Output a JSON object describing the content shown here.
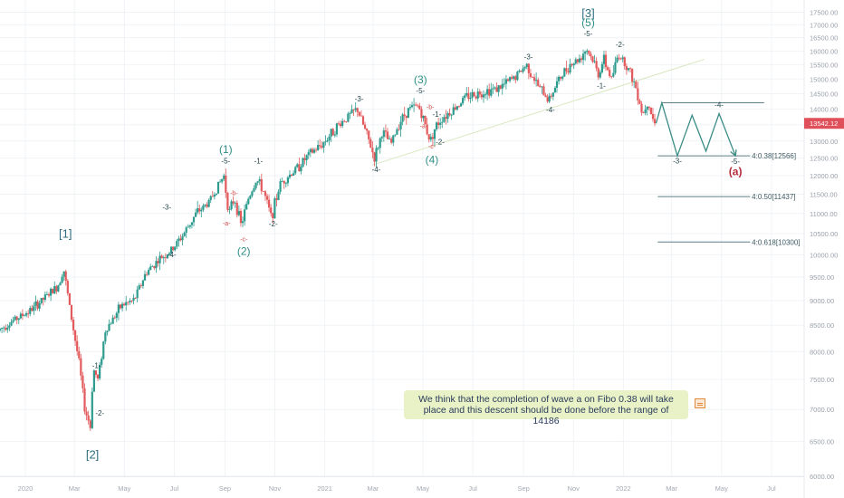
{
  "chart_data": {
    "type": "candlestick",
    "yscale": "log",
    "ylim": [
      6000,
      18000
    ],
    "y_ticks": [
      "6000.00",
      "6500.00",
      "7000.00",
      "7500.00",
      "8000.00",
      "8500.00",
      "9000.00",
      "9500.00",
      "10000.00",
      "10500.00",
      "11000.00",
      "11500.00",
      "12000.00",
      "12500.00",
      "13000.00",
      "13500.00",
      "14000.00",
      "14500.00",
      "15000.00",
      "15500.00",
      "16000.00",
      "16500.00",
      "17000.00",
      "17500.00"
    ],
    "x_ticks": [
      "2020",
      "Mar",
      "May",
      "Jul",
      "Sep",
      "Nov",
      "2021",
      "Mar",
      "May",
      "Jul",
      "Sep",
      "Nov",
      "2022",
      "Mar",
      "May",
      "Jul"
    ],
    "x_range": [
      "2019-12-01",
      "2022-08-10"
    ],
    "last_price": "13542.12",
    "price_path": [
      [
        "2019-12-01",
        8400
      ],
      [
        "2019-12-20",
        8600
      ],
      [
        "2020-01-10",
        8800
      ],
      [
        "2020-01-30",
        9100
      ],
      [
        "2020-02-12",
        9300
      ],
      [
        "2020-02-19",
        9700
      ],
      [
        "2020-02-28",
        8700
      ],
      [
        "2020-03-09",
        7800
      ],
      [
        "2020-03-16",
        7000
      ],
      [
        "2020-03-20",
        6850
      ],
      [
        "2020-03-23",
        6700
      ],
      [
        "2020-03-26",
        7700
      ],
      [
        "2020-04-01",
        7500
      ],
      [
        "2020-04-10",
        8400
      ],
      [
        "2020-04-30",
        8900
      ],
      [
        "2020-05-15",
        9000
      ],
      [
        "2020-05-30",
        9600
      ],
      [
        "2020-06-15",
        9900
      ],
      [
        "2020-06-30",
        10100
      ],
      [
        "2020-07-15",
        10500
      ],
      [
        "2020-07-30",
        11000
      ],
      [
        "2020-08-15",
        11300
      ],
      [
        "2020-08-25",
        11700
      ],
      [
        "2020-09-02",
        12000
      ],
      [
        "2020-09-08",
        11000
      ],
      [
        "2020-09-15",
        11400
      ],
      [
        "2020-09-23",
        10700
      ],
      [
        "2020-10-02",
        11400
      ],
      [
        "2020-10-12",
        11900
      ],
      [
        "2020-10-20",
        11600
      ],
      [
        "2020-10-30",
        10900
      ],
      [
        "2020-11-10",
        11800
      ],
      [
        "2020-11-30",
        12200
      ],
      [
        "2020-12-15",
        12600
      ],
      [
        "2020-12-31",
        12900
      ],
      [
        "2021-01-20",
        13500
      ],
      [
        "2021-02-12",
        14000
      ],
      [
        "2021-02-25",
        13100
      ],
      [
        "2021-03-05",
        12500
      ],
      [
        "2021-03-15",
        13300
      ],
      [
        "2021-03-25",
        12900
      ],
      [
        "2021-04-05",
        13600
      ],
      [
        "2021-04-16",
        14000
      ],
      [
        "2021-04-28",
        14100
      ],
      [
        "2021-05-06",
        13500
      ],
      [
        "2021-05-12",
        13000
      ],
      [
        "2021-05-18",
        13400
      ],
      [
        "2021-05-26",
        13700
      ],
      [
        "2021-06-10",
        14000
      ],
      [
        "2021-06-25",
        14400
      ],
      [
        "2021-07-08",
        14500
      ],
      [
        "2021-07-20",
        14600
      ],
      [
        "2021-08-05",
        14700
      ],
      [
        "2021-08-25",
        15100
      ],
      [
        "2021-09-07",
        15500
      ],
      [
        "2021-09-20",
        14800
      ],
      [
        "2021-10-04",
        14300
      ],
      [
        "2021-10-15",
        14900
      ],
      [
        "2021-10-29",
        15500
      ],
      [
        "2021-11-10",
        15700
      ],
      [
        "2021-11-19",
        16100
      ],
      [
        "2021-11-30",
        15500
      ],
      [
        "2021-12-03",
        15100
      ],
      [
        "2021-12-10",
        15700
      ],
      [
        "2021-12-20",
        15000
      ],
      [
        "2021-12-28",
        15900
      ],
      [
        "2022-01-05",
        15600
      ],
      [
        "2022-01-12",
        15200
      ],
      [
        "2022-01-20",
        14600
      ],
      [
        "2022-01-27",
        13800
      ],
      [
        "2022-02-02",
        14300
      ],
      [
        "2022-02-10",
        13542.12
      ]
    ],
    "projection": [
      [
        "2022-02-10",
        13542.12
      ],
      [
        "2022-02-17",
        14200
      ],
      [
        "2022-03-08",
        12566
      ],
      [
        "2022-03-26",
        13800
      ],
      [
        "2022-04-12",
        12700
      ],
      [
        "2022-04-28",
        13850
      ],
      [
        "2022-05-18",
        12566
      ]
    ],
    "trendline": [
      [
        "2021-02-28",
        12300
      ],
      [
        "2022-04-10",
        15700
      ]
    ],
    "resistance": {
      "price": 14200,
      "from": "2022-02-17",
      "to": "2022-06-22"
    },
    "fib_levels": [
      {
        "label": "4:0.38[12566]",
        "price": 12566
      },
      {
        "label": "4:0.50[11437]",
        "price": 11437
      },
      {
        "label": "4:0.618[10300]",
        "price": 10300
      }
    ],
    "wave_labels": [
      {
        "text": "[1]",
        "date": "2020-02-19",
        "price": 10400,
        "color": "#2f6d7e",
        "size": 13
      },
      {
        "text": "[2]",
        "date": "2020-03-23",
        "price": 6250,
        "color": "#2f6d7e",
        "size": 13
      },
      {
        "text": "-1-",
        "date": "2020-03-28",
        "price": 7700,
        "color": "#1c3f47",
        "size": 8
      },
      {
        "text": "-2-",
        "date": "2020-04-01",
        "price": 6900,
        "color": "#1c3f47",
        "size": 8
      },
      {
        "text": "-3-",
        "date": "2020-06-22",
        "price": 11100,
        "color": "#1c3f47",
        "size": 8
      },
      {
        "text": "-4-",
        "date": "2020-06-28",
        "price": 9950,
        "color": "#1c3f47",
        "size": 8
      },
      {
        "text": "(1)",
        "date": "2020-09-02",
        "price": 12650,
        "color": "#2f8f86",
        "size": 12
      },
      {
        "text": "-5-",
        "date": "2020-09-02",
        "price": 12350,
        "color": "#1c3f47",
        "size": 8
      },
      {
        "text": "-b-",
        "date": "2020-09-12",
        "price": 11480,
        "color": "#d24a4a",
        "size": 7
      },
      {
        "text": "-a-",
        "date": "2020-09-03",
        "price": 10700,
        "color": "#d24a4a",
        "size": 7
      },
      {
        "text": "-c-",
        "date": "2020-09-24",
        "price": 10320,
        "color": "#d24a4a",
        "size": 7
      },
      {
        "text": "(2)",
        "date": "2020-09-24",
        "price": 10000,
        "color": "#2f8f86",
        "size": 12
      },
      {
        "text": "-1-",
        "date": "2020-10-12",
        "price": 12350,
        "color": "#1c3f47",
        "size": 8
      },
      {
        "text": "-2-",
        "date": "2020-10-30",
        "price": 10680,
        "color": "#1c3f47",
        "size": 8
      },
      {
        "text": "-3-",
        "date": "2021-02-12",
        "price": 14250,
        "color": "#1c3f47",
        "size": 8
      },
      {
        "text": "-4-",
        "date": "2021-03-05",
        "price": 12100,
        "color": "#1c3f47",
        "size": 8
      },
      {
        "text": "(3)",
        "date": "2021-04-28",
        "price": 14850,
        "color": "#2f8f86",
        "size": 12
      },
      {
        "text": "-5-",
        "date": "2021-04-28",
        "price": 14520,
        "color": "#1c3f47",
        "size": 8
      },
      {
        "text": "-b-",
        "date": "2021-05-10",
        "price": 14000,
        "color": "#d24a4a",
        "size": 7
      },
      {
        "text": "-a-",
        "date": "2021-05-02",
        "price": 13400,
        "color": "#d24a4a",
        "size": 7
      },
      {
        "text": "-1-",
        "date": "2021-05-18",
        "price": 13750,
        "color": "#1c3f47",
        "size": 8
      },
      {
        "text": "-c-",
        "date": "2021-05-12",
        "price": 12780,
        "color": "#d24a4a",
        "size": 7
      },
      {
        "text": "-2-",
        "date": "2021-05-22",
        "price": 12900,
        "color": "#1c3f47",
        "size": 8
      },
      {
        "text": "(4)",
        "date": "2021-05-12",
        "price": 12350,
        "color": "#2f8f86",
        "size": 12
      },
      {
        "text": "-3-",
        "date": "2021-09-07",
        "price": 15700,
        "color": "#1c3f47",
        "size": 8
      },
      {
        "text": "-4-",
        "date": "2021-10-04",
        "price": 13900,
        "color": "#1c3f47",
        "size": 8
      },
      {
        "text": "[3]",
        "date": "2021-11-19",
        "price": 17300,
        "color": "#2f6d7e",
        "size": 13
      },
      {
        "text": "(5)",
        "date": "2021-11-19",
        "price": 16950,
        "color": "#2f8f86",
        "size": 12
      },
      {
        "text": "-5-",
        "date": "2021-11-19",
        "price": 16550,
        "color": "#1c3f47",
        "size": 8
      },
      {
        "text": "-1-",
        "date": "2021-12-05",
        "price": 14680,
        "color": "#1c3f47",
        "size": 8
      },
      {
        "text": "-2-",
        "date": "2021-12-28",
        "price": 16150,
        "color": "#1c3f47",
        "size": 8
      },
      {
        "text": "-3-",
        "date": "2022-03-08",
        "price": 12350,
        "color": "#1c3f47",
        "size": 8
      },
      {
        "text": "-4-",
        "date": "2022-04-28",
        "price": 14050,
        "color": "#1c3f47",
        "size": 8
      },
      {
        "text": "-5-",
        "date": "2022-05-18",
        "price": 12330,
        "color": "#1c3f47",
        "size": 8
      },
      {
        "text": "(a)",
        "date": "2022-05-18",
        "price": 12020,
        "color": "#b52d3a",
        "size": 12
      }
    ],
    "colors": {
      "up": "#2d9b8e",
      "down": "#e35a5d",
      "projection": "#3a8c85",
      "fib": "#5c7f87",
      "trend": "#d9e8c0",
      "grid": "#f0f3f6",
      "price_tag": "#e0505a"
    }
  },
  "note": {
    "text": "We think that the completion of wave a on Fibo 0.38 will take place and this descent should be done before the range of 14186"
  }
}
